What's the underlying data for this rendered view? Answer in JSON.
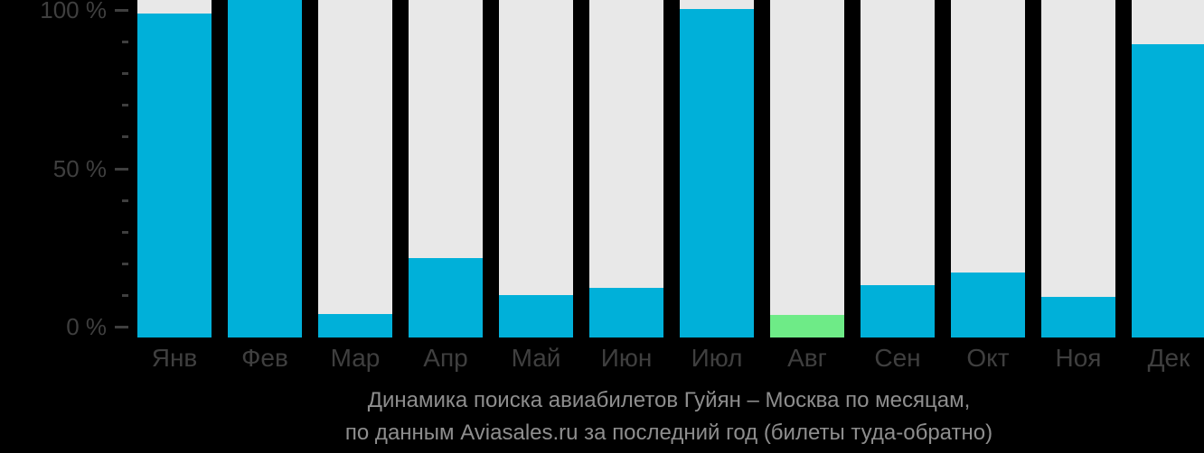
{
  "chart_data": {
    "type": "bar",
    "title": "Динамика поиска авиабилетов Гуйян – Москва по месяцам,",
    "subtitle": "по данным Aviasales.ru за последний год (билеты туда-обратно)",
    "categories": [
      "Янв",
      "Фев",
      "Мар",
      "Апр",
      "Май",
      "Июн",
      "Июл",
      "Авг",
      "Сен",
      "Окт",
      "Ноя",
      "Дек"
    ],
    "values": [
      96,
      100,
      7,
      23.5,
      12.7,
      14.6,
      97.3,
      6.7,
      15.6,
      19.2,
      12,
      86.8
    ],
    "unit": "%",
    "ylim": [
      0,
      100
    ],
    "yticks": [
      {
        "value": 100,
        "label": "100 %"
      },
      {
        "value": 50,
        "label": "50 %"
      },
      {
        "value": 0,
        "label": "0 %"
      }
    ],
    "minor_tick_step": 10,
    "highlighted_month": "Авг",
    "legend": "none",
    "grid": "off",
    "colors": {
      "bar": "#00b0d9",
      "highlight": "#6eeb87",
      "track": "#e8e8e8",
      "axis_text": "#3f3f3f",
      "tick_mark": "#3f3f3f",
      "caption_text": "#8e8e8e",
      "background": "#000000"
    }
  }
}
